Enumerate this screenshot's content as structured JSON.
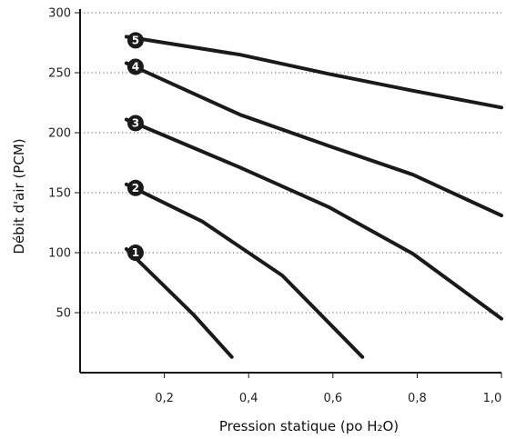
{
  "chart_data": {
    "type": "line",
    "xlabel": "Pression statique (po H₂O)",
    "ylabel": "Débit d'air (PCM)",
    "xlim": [
      0,
      1.0
    ],
    "ylim": [
      0,
      300
    ],
    "x_ticks": [
      "0,2",
      "0,4",
      "0,6",
      "0,8",
      "1,0"
    ],
    "x_tick_values": [
      0.2,
      0.4,
      0.6,
      0.8,
      1.0
    ],
    "y_ticks": [
      "50",
      "100",
      "150",
      "200",
      "250",
      "300"
    ],
    "y_tick_values": [
      50,
      100,
      150,
      200,
      250,
      300
    ],
    "grid": "horizontal-dotted",
    "series": [
      {
        "name": "1",
        "points": [
          [
            0.11,
            103
          ],
          [
            0.27,
            48
          ],
          [
            0.36,
            13
          ]
        ]
      },
      {
        "name": "2",
        "points": [
          [
            0.11,
            157
          ],
          [
            0.29,
            126
          ],
          [
            0.48,
            81
          ],
          [
            0.67,
            13
          ]
        ]
      },
      {
        "name": "3",
        "points": [
          [
            0.11,
            211
          ],
          [
            0.38,
            171
          ],
          [
            0.59,
            138
          ],
          [
            0.79,
            99
          ],
          [
            1.0,
            45
          ]
        ]
      },
      {
        "name": "4",
        "points": [
          [
            0.11,
            258
          ],
          [
            0.38,
            215
          ],
          [
            0.59,
            189
          ],
          [
            0.79,
            165
          ],
          [
            1.0,
            131
          ]
        ]
      },
      {
        "name": "5",
        "points": [
          [
            0.11,
            280
          ],
          [
            0.38,
            265
          ],
          [
            0.59,
            249
          ],
          [
            0.79,
            235
          ],
          [
            1.0,
            221
          ]
        ]
      }
    ],
    "colors": {
      "line": "#1a1a1a",
      "grid": "#555555",
      "badge": "#1a1a1a"
    }
  }
}
